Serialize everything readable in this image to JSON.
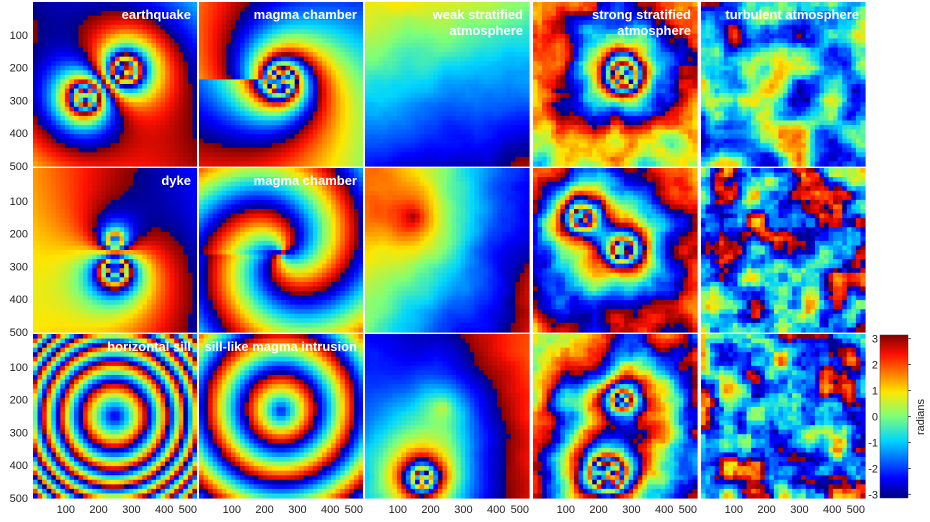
{
  "figure": {
    "rows": [
      [
        "earthquake",
        "magma chamber",
        "weak stratified\natmosphere",
        "strong stratified\natmosphere",
        "turbulent atmosphere"
      ],
      [
        "dyke",
        "magma chamber",
        "",
        "",
        ""
      ],
      [
        "horizontal sill",
        "sill-like magma intrusion",
        "",
        "",
        ""
      ]
    ],
    "y_ticks": [
      "100",
      "200",
      "300",
      "400",
      "500"
    ],
    "x_ticks": [
      "100",
      "200",
      "300",
      "400",
      "500"
    ],
    "colorbar": {
      "label": "radians",
      "ticks": [
        "3",
        "2",
        "1",
        "0",
        "-1",
        "-2",
        "-3"
      ],
      "min": -3.14159,
      "max": 3.14159
    },
    "pixel_range": [
      0,
      500
    ]
  }
}
